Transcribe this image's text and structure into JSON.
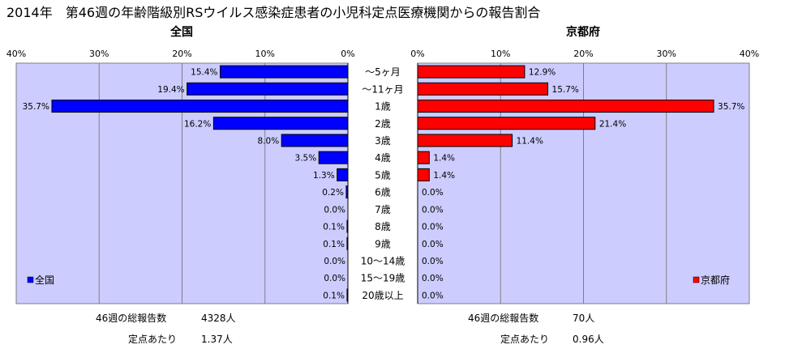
{
  "title": "2014年　第46週の年齢階級別RSウイルス感染症患者の小児科定点医療機関からの報告割合",
  "chart_data": {
    "type": "bar",
    "orientation": "horizontal",
    "categories": [
      "～5ヶ月",
      "～11ヶ月",
      "1歳",
      "2歳",
      "3歳",
      "4歳",
      "5歳",
      "6歳",
      "7歳",
      "8歳",
      "9歳",
      "10～14歳",
      "15～19歳",
      "20歳以上"
    ],
    "axis_ticks": [
      "40%",
      "30%",
      "20%",
      "10%",
      "0%"
    ],
    "axis_ticks_right": [
      "0%",
      "10%",
      "20%",
      "30%",
      "40%"
    ],
    "xlim": [
      0,
      40
    ],
    "grid": true,
    "series": [
      {
        "name": "全国",
        "panel_title": "全国",
        "color": "#0000ff",
        "values": [
          15.4,
          19.4,
          35.7,
          16.2,
          8.0,
          3.5,
          1.3,
          0.2,
          0.0,
          0.1,
          0.1,
          0.0,
          0.0,
          0.1
        ],
        "labels": [
          "15.4%",
          "19.4%",
          "35.7%",
          "16.2%",
          "8.0%",
          "3.5%",
          "1.3%",
          "0.2%",
          "0.0%",
          "0.1%",
          "0.1%",
          "0.0%",
          "0.0%",
          "0.1%"
        ],
        "legend": "bottom-left"
      },
      {
        "name": "京都府",
        "panel_title": "京都府",
        "color": "#ff0000",
        "values": [
          12.9,
          15.7,
          35.7,
          21.4,
          11.4,
          1.4,
          1.4,
          0.0,
          0.0,
          0.0,
          0.0,
          0.0,
          0.0,
          0.0
        ],
        "labels": [
          "12.9%",
          "15.7%",
          "35.7%",
          "21.4%",
          "11.4%",
          "1.4%",
          "1.4%",
          "0.0%",
          "0.0%",
          "0.0%",
          "0.0%",
          "0.0%",
          "0.0%",
          "0.0%"
        ],
        "legend": "bottom-right"
      }
    ]
  },
  "footer": {
    "left": {
      "total_label": "46週の総報告数",
      "total_value": "4328人",
      "per_label": "定点あたり",
      "per_value": "1.37人"
    },
    "right": {
      "total_label": "46週の総報告数",
      "total_value": "70人",
      "per_label": "定点あたり",
      "per_value": "0.96人"
    }
  }
}
